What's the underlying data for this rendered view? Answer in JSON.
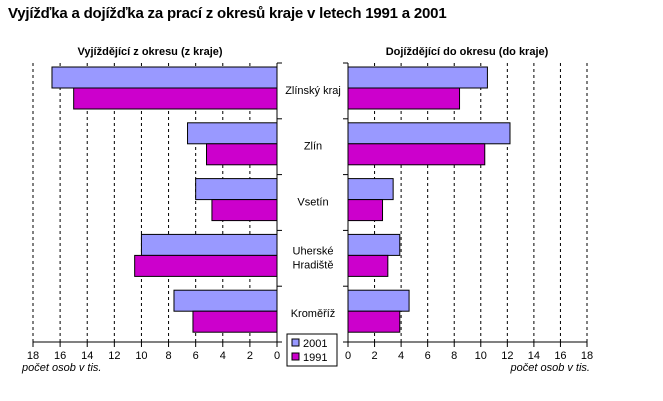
{
  "title": "Vyjížďka a dojížďka za prací z okresů kraje v letech 1991 a 2001",
  "legend": {
    "items": [
      {
        "label": "2001",
        "color": "#9999ff"
      },
      {
        "label": "1991",
        "color": "#cc00cc"
      }
    ]
  },
  "chart_data": [
    {
      "type": "bar",
      "orientation": "horizontal",
      "direction": "reversed",
      "title": "Vyjíždějící z okresu (z kraje)",
      "xlabel": "počet osob v tis.",
      "ylabel": "",
      "categories": [
        "Zlínský kraj",
        "Zlín",
        "Vsetín",
        "Uherské Hradiště",
        "Kroměříž"
      ],
      "series": [
        {
          "name": "2001",
          "color": "#9999ff",
          "values": [
            16.6,
            6.6,
            6.0,
            10.0,
            7.6
          ]
        },
        {
          "name": "1991",
          "color": "#cc00cc",
          "values": [
            15.0,
            5.2,
            4.8,
            10.5,
            6.2
          ]
        }
      ],
      "xlim": [
        0,
        18
      ],
      "xticks": [
        18,
        16,
        14,
        12,
        10,
        8,
        6,
        4,
        2,
        0
      ],
      "grid": true,
      "legend": "bottom-right"
    },
    {
      "type": "bar",
      "orientation": "horizontal",
      "title": "Dojíždějící do okresu (do kraje)",
      "xlabel": "počet osob v tis.",
      "ylabel": "",
      "categories": [
        "Zlínský kraj",
        "Zlín",
        "Vsetín",
        "Uherské Hradiště",
        "Kroměříž"
      ],
      "series": [
        {
          "name": "2001",
          "color": "#9999ff",
          "values": [
            10.5,
            12.2,
            3.4,
            3.9,
            4.6
          ]
        },
        {
          "name": "1991",
          "color": "#cc00cc",
          "values": [
            8.4,
            10.3,
            2.6,
            3.0,
            3.9
          ]
        }
      ],
      "xlim": [
        0,
        18
      ],
      "xticks": [
        0,
        2,
        4,
        6,
        8,
        10,
        12,
        14,
        16,
        18
      ],
      "grid": true
    }
  ],
  "category_labels": [
    "Zlínský kraj",
    "Zlín",
    "Vsetín",
    "Uherské|Hradiště",
    "Kroměříž"
  ]
}
